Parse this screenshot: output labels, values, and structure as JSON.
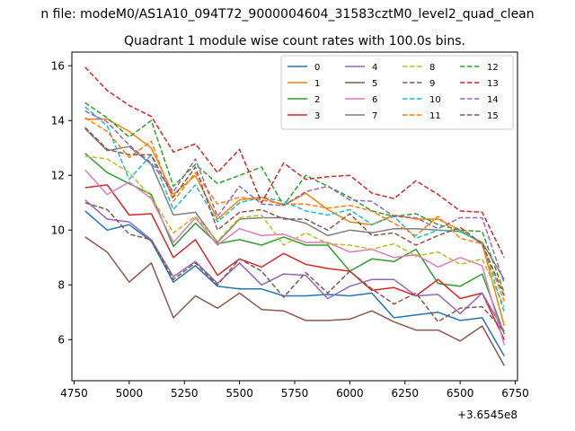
{
  "chart_data": {
    "type": "line",
    "suptitle": "n file: modeM0/AS1A10_094T72_9000004604_31583cztM0_level2_quad_clean",
    "title": "Quadrant 1 module wise count rates with 100.0s bins.",
    "xlabel": "",
    "ylabel": "",
    "x_offset_label": "+3.6545e8",
    "xlim": [
      4740,
      6760
    ],
    "ylim": [
      4.5,
      16.5
    ],
    "xticks": [
      4750,
      5000,
      5250,
      5500,
      5750,
      6000,
      6250,
      6500,
      6750
    ],
    "yticks": [
      6,
      8,
      10,
      12,
      14,
      16
    ],
    "legend_position": "top-right",
    "x": [
      4800,
      4900,
      5000,
      5100,
      5200,
      5300,
      5400,
      5500,
      5600,
      5700,
      5800,
      5900,
      6000,
      6100,
      6200,
      6300,
      6400,
      6500,
      6600,
      6700
    ],
    "series": [
      {
        "name": "0",
        "color": "#1f77b4",
        "dash": false,
        "values": [
          10.7,
          10.0,
          10.2,
          9.6,
          8.1,
          8.7,
          7.95,
          7.85,
          7.85,
          7.6,
          7.6,
          7.65,
          7.6,
          7.7,
          6.8,
          6.9,
          7.0,
          6.7,
          6.8,
          5.4
        ]
      },
      {
        "name": "1",
        "color": "#ff7f0e",
        "dash": false,
        "values": [
          14.05,
          14.05,
          13.6,
          13.0,
          11.3,
          12.0,
          10.4,
          11.1,
          11.2,
          10.9,
          11.35,
          10.75,
          10.3,
          10.2,
          10.55,
          10.4,
          10.4,
          10.0,
          9.5,
          6.5
        ]
      },
      {
        "name": "2",
        "color": "#2ca02c",
        "dash": false,
        "values": [
          12.8,
          12.1,
          11.7,
          11.3,
          9.4,
          10.25,
          9.5,
          9.65,
          9.45,
          9.75,
          9.45,
          9.45,
          8.5,
          8.95,
          8.85,
          9.3,
          8.05,
          7.95,
          8.4,
          6.2
        ]
      },
      {
        "name": "3",
        "color": "#d62728",
        "dash": false,
        "values": [
          11.55,
          11.65,
          10.55,
          10.6,
          9.0,
          9.65,
          8.35,
          8.95,
          8.65,
          9.15,
          8.75,
          8.6,
          8.5,
          7.8,
          7.9,
          7.6,
          8.2,
          7.5,
          7.7,
          6.0
        ]
      },
      {
        "name": "4",
        "color": "#9467bd",
        "dash": false,
        "values": [
          11.1,
          10.4,
          10.3,
          9.65,
          8.3,
          8.85,
          8.05,
          8.8,
          8.0,
          8.4,
          8.35,
          7.5,
          7.95,
          8.2,
          8.2,
          7.6,
          7.65,
          6.95,
          7.7,
          6.3
        ]
      },
      {
        "name": "5",
        "color": "#8c564b",
        "dash": false,
        "values": [
          9.75,
          9.2,
          8.1,
          8.8,
          6.8,
          7.6,
          7.15,
          7.7,
          7.1,
          7.05,
          6.7,
          6.7,
          6.75,
          7.05,
          6.65,
          6.35,
          6.35,
          5.95,
          6.5,
          5.05
        ]
      },
      {
        "name": "6",
        "color": "#e377c2",
        "dash": false,
        "values": [
          12.2,
          11.3,
          11.75,
          11.15,
          9.55,
          10.45,
          9.45,
          10.05,
          9.8,
          9.85,
          9.55,
          9.55,
          9.2,
          9.3,
          9.0,
          9.1,
          8.65,
          9.0,
          8.7,
          5.8
        ]
      },
      {
        "name": "7",
        "color": "#7f7f7f",
        "dash": false,
        "values": [
          13.7,
          12.9,
          13.05,
          12.4,
          10.55,
          10.65,
          9.55,
          10.4,
          10.45,
          10.45,
          10.25,
          9.8,
          10.0,
          9.9,
          10.05,
          10.05,
          10.0,
          9.95,
          9.55,
          8.2
        ]
      },
      {
        "name": "8",
        "color": "#bcbd22",
        "dash": true,
        "values": [
          12.7,
          12.6,
          12.1,
          11.2,
          9.9,
          10.5,
          9.6,
          10.45,
          10.55,
          9.45,
          9.9,
          9.5,
          9.45,
          9.3,
          9.5,
          9.05,
          9.2,
          8.75,
          8.95,
          7.2
        ]
      },
      {
        "name": "9",
        "color": "#8c564b",
        "dash": true,
        "values": [
          11.0,
          10.75,
          9.85,
          9.65,
          8.2,
          8.8,
          8.0,
          8.95,
          8.5,
          7.55,
          8.45,
          7.7,
          8.5,
          7.85,
          7.3,
          7.7,
          6.65,
          7.15,
          7.2,
          6.3
        ]
      },
      {
        "name": "10",
        "color": "#17becf",
        "dash": true,
        "values": [
          14.5,
          13.8,
          11.85,
          12.75,
          10.75,
          11.65,
          10.3,
          11.0,
          11.2,
          11.05,
          10.7,
          10.55,
          10.75,
          10.2,
          10.5,
          9.7,
          10.0,
          9.95,
          9.55,
          7.0
        ]
      },
      {
        "name": "11",
        "color": "#ff7f0e",
        "dash": true,
        "values": [
          14.1,
          13.6,
          12.65,
          13.25,
          11.05,
          12.1,
          10.95,
          11.2,
          11.1,
          10.95,
          10.95,
          10.8,
          10.9,
          10.7,
          10.25,
          9.8,
          10.5,
          9.7,
          9.5,
          7.4
        ]
      },
      {
        "name": "12",
        "color": "#2ca02c",
        "dash": true,
        "values": [
          14.65,
          14.1,
          13.4,
          14.0,
          11.6,
          12.4,
          11.7,
          12.0,
          12.3,
          10.9,
          12.0,
          11.6,
          11.2,
          10.7,
          10.5,
          10.6,
          10.2,
          10.0,
          9.95,
          7.7
        ]
      },
      {
        "name": "13",
        "color": "#d62728",
        "dash": true,
        "values": [
          15.95,
          15.1,
          14.55,
          14.15,
          12.85,
          13.15,
          12.1,
          12.95,
          11.0,
          12.45,
          11.85,
          11.95,
          12.0,
          11.35,
          11.15,
          11.8,
          11.3,
          10.7,
          10.65,
          9.0
        ]
      },
      {
        "name": "14",
        "color": "#9467bd",
        "dash": true,
        "values": [
          14.35,
          13.95,
          13.1,
          12.45,
          11.4,
          12.6,
          10.5,
          11.6,
          10.95,
          10.9,
          11.4,
          11.6,
          11.1,
          11.05,
          10.5,
          10.45,
          10.05,
          10.45,
          10.45,
          8.05
        ]
      },
      {
        "name": "15",
        "color": "#8c564b",
        "dash": true,
        "values": [
          13.75,
          12.95,
          12.75,
          12.75,
          11.2,
          12.3,
          10.0,
          10.65,
          10.75,
          10.4,
          10.4,
          10.0,
          10.6,
          9.8,
          9.9,
          9.45,
          9.8,
          10.1,
          9.5,
          7.6
        ]
      }
    ]
  }
}
